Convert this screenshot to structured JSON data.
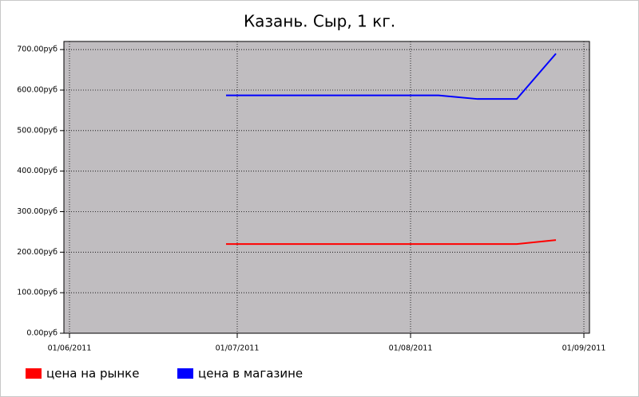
{
  "chart_data": {
    "type": "line",
    "title": "Казань. Сыр, 1 кг.",
    "x": [
      "29/06/2011",
      "06/08/2011",
      "13/08/2011",
      "20/08/2011",
      "27/08/2011"
    ],
    "series": [
      {
        "name": "цена на рынке",
        "color": "#ff0000",
        "values": [
          220,
          220,
          220,
          220,
          230
        ]
      },
      {
        "name": "цена в магазине",
        "color": "#0000ff",
        "values": [
          587,
          587,
          578,
          578,
          690
        ]
      }
    ],
    "xlim": [
      "31/05/2011",
      "02/09/2011"
    ],
    "xticks": [
      "01/06/2011",
      "01/07/2011",
      "01/08/2011",
      "01/09/2011"
    ],
    "ylim": [
      0,
      720
    ],
    "yticks": [
      {
        "value": 0,
        "label": "0.00руб"
      },
      {
        "value": 100,
        "label": "100.00руб"
      },
      {
        "value": 200,
        "label": "200.00руб"
      },
      {
        "value": 300,
        "label": "300.00руб"
      },
      {
        "value": 400,
        "label": "400.00руб"
      },
      {
        "value": 500,
        "label": "500.00руб"
      },
      {
        "value": 600,
        "label": "600.00руб"
      },
      {
        "value": 700,
        "label": "700.00руб"
      }
    ],
    "grid": true,
    "background": "#c0bdc0"
  }
}
